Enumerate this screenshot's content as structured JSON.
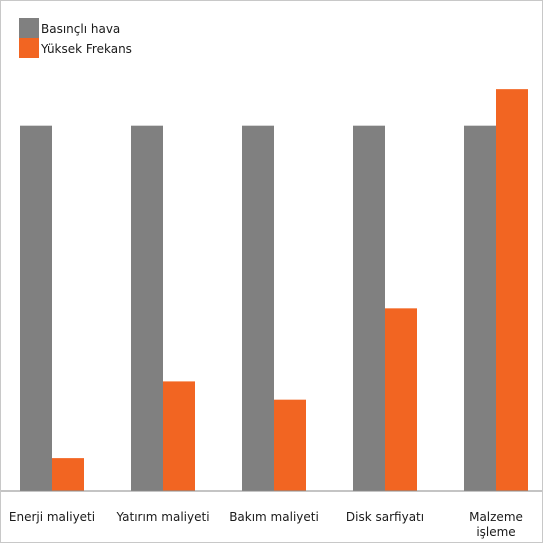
{
  "chart_data": {
    "type": "bar",
    "categories": [
      "Enerji maliyeti",
      "Yatırım maliyeti",
      "Bakım maliyeti",
      "Disk sarfiyatı",
      "Malzeme\nişleme"
    ],
    "series": [
      {
        "name": "Basınçlı hava",
        "color": "#808080",
        "values": [
          100,
          100,
          100,
          100,
          100
        ]
      },
      {
        "name": "Yüksek Frekans",
        "color": "#F26522",
        "values": [
          9,
          30,
          25,
          50,
          110
        ]
      }
    ],
    "title": "",
    "xlabel": "",
    "ylabel": "",
    "ylim": [
      0,
      124
    ],
    "grid": false,
    "legend": "top-left"
  }
}
